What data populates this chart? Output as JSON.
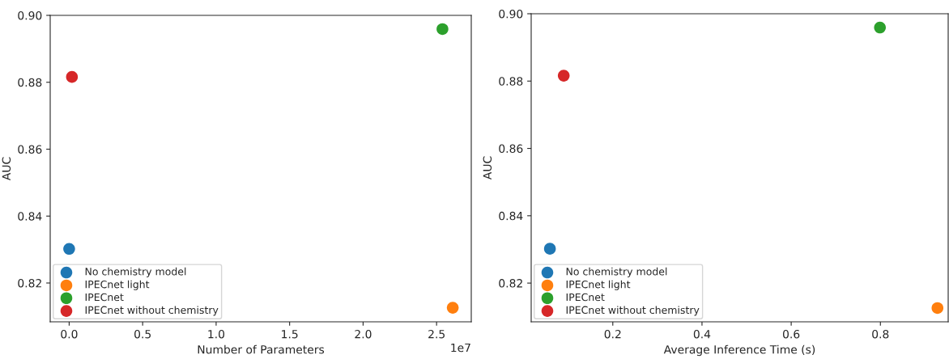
{
  "chart_data": [
    {
      "type": "scatter",
      "xlabel": "Number of Parameters",
      "ylabel": "AUC",
      "annotations": [
        "1e7"
      ],
      "xlim": [
        -0.129,
        2.736
      ],
      "ylim": [
        0.8084,
        0.9
      ],
      "xticks": [
        {
          "value": 0,
          "label": "0.0"
        },
        0.5,
        {
          "value": 1,
          "label": "1.0"
        },
        1.5,
        {
          "value": 2,
          "label": "2.0"
        },
        2.5
      ],
      "yticks": [
        {
          "value": 0.82,
          "label": "0.82"
        },
        {
          "value": 0.84,
          "label": "0.84"
        },
        {
          "value": 0.86,
          "label": "0.86"
        },
        {
          "value": 0.88,
          "label": "0.88"
        },
        {
          "value": 0.9,
          "label": "0.90"
        }
      ],
      "legend": "bottom left",
      "marker": "circle",
      "grid": false,
      "series": [
        {
          "name": "No chemistry model",
          "color": "#1f77b4",
          "x": [
            0
          ],
          "values": [
            0.8302
          ]
        },
        {
          "name": "IPECnet light",
          "color": "#ff7f0e",
          "x": [
            2.61
          ],
          "values": [
            0.8126
          ]
        },
        {
          "name": "IPECnet",
          "color": "#2ca02c",
          "x": [
            2.54
          ],
          "values": [
            0.8959
          ]
        },
        {
          "name": "IPECnet without chemistry",
          "color": "#d62728",
          "x": [
            0.019
          ],
          "values": [
            0.8816
          ]
        }
      ]
    },
    {
      "type": "scatter",
      "xlabel": "Average Inference Time (s)",
      "ylabel": "AUC",
      "xlim": [
        0.017,
        0.952
      ],
      "ylim": [
        0.8085,
        0.9
      ],
      "xticks": [
        0.2,
        0.4,
        0.6,
        0.8
      ],
      "yticks": [
        {
          "value": 0.82,
          "label": "0.82"
        },
        {
          "value": 0.84,
          "label": "0.84"
        },
        {
          "value": 0.86,
          "label": "0.86"
        },
        {
          "value": 0.88,
          "label": "0.88"
        },
        {
          "value": 0.9,
          "label": "0.90"
        }
      ],
      "legend": "bottom left",
      "marker": "circle",
      "grid": false,
      "series": [
        {
          "name": "No chemistry model",
          "color": "#1f77b4",
          "x": [
            0.059
          ],
          "values": [
            0.8302
          ]
        },
        {
          "name": "IPECnet light",
          "color": "#ff7f0e",
          "x": [
            0.928
          ],
          "values": [
            0.8126
          ]
        },
        {
          "name": "IPECnet",
          "color": "#2ca02c",
          "x": [
            0.799
          ],
          "values": [
            0.8959
          ]
        },
        {
          "name": "IPECnet without chemistry",
          "color": "#d62728",
          "x": [
            0.09
          ],
          "values": [
            0.8816
          ]
        }
      ]
    }
  ]
}
